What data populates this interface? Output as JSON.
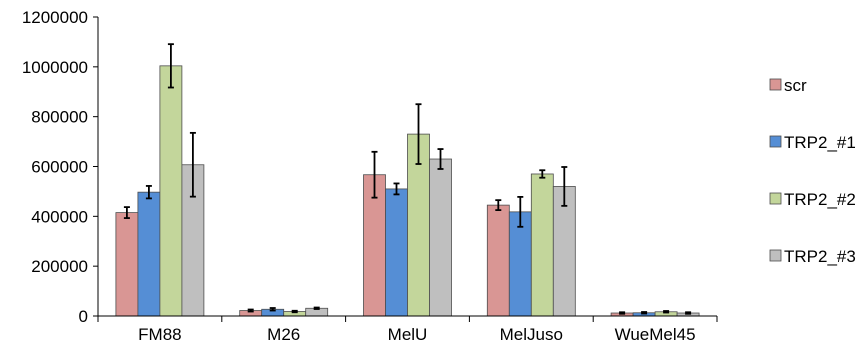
{
  "chart_data": {
    "type": "bar",
    "categories": [
      "FM88",
      "M26",
      "MelU",
      "MelJuso",
      "WueMel45"
    ],
    "series": [
      {
        "name": "scr",
        "color": "#d99694",
        "values": [
          415000,
          22000,
          567000,
          445000,
          12000
        ],
        "errors": [
          22000,
          4000,
          92000,
          20000,
          3000
        ]
      },
      {
        "name": "TRP2_#1",
        "color": "#558ed5",
        "values": [
          497000,
          27000,
          510000,
          418000,
          13000
        ],
        "errors": [
          25000,
          5000,
          22000,
          60000,
          3000
        ]
      },
      {
        "name": "TRP2_#2",
        "color": "#c3d69b",
        "values": [
          1004000,
          18000,
          730000,
          570000,
          17000
        ],
        "errors": [
          87000,
          3000,
          120000,
          15000,
          3000
        ]
      },
      {
        "name": "TRP2_#3",
        "color": "#bfbfbf",
        "values": [
          607000,
          31000,
          630000,
          520000,
          12000
        ],
        "errors": [
          128000,
          3000,
          40000,
          78000,
          3000
        ]
      }
    ],
    "yticks": [
      "0",
      "200000",
      "400000",
      "600000",
      "800000",
      "1000000",
      "1200000"
    ],
    "ylim": [
      0,
      1200000
    ],
    "title": "",
    "xlabel": "",
    "ylabel": "",
    "grid": false,
    "legend_position": "right"
  }
}
